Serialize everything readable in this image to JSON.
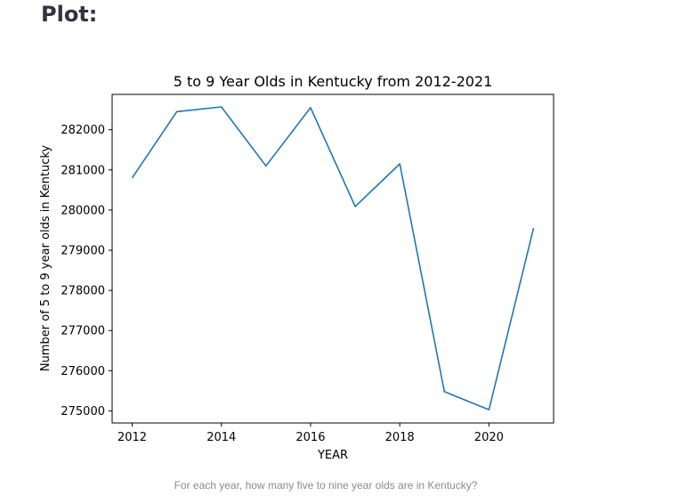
{
  "page": {
    "heading": "Plot:",
    "caption": "For each year, how many five to nine year olds are in Kentucky?"
  },
  "chart_data": {
    "type": "line",
    "title": "5 to 9 Year Olds in Kentucky from 2012-2021",
    "xlabel": "YEAR",
    "ylabel": "Number of 5 to 9 year olds in Kentucky",
    "x": [
      2012,
      2013,
      2014,
      2015,
      2016,
      2017,
      2018,
      2019,
      2020,
      2021
    ],
    "series": [
      {
        "values": [
          280800,
          282450,
          282570,
          281100,
          282550,
          280090,
          281150,
          275480,
          275030,
          279550
        ]
      }
    ],
    "xticks": [
      "2012",
      "2014",
      "2016",
      "2018",
      "2020"
    ],
    "yticks": [
      "275000",
      "276000",
      "277000",
      "278000",
      "279000",
      "280000",
      "281000",
      "282000"
    ],
    "xlim": [
      2011.55,
      2021.45
    ],
    "ylim": [
      274700,
      282880
    ],
    "grid": false,
    "line_color": "#1f77b4"
  }
}
